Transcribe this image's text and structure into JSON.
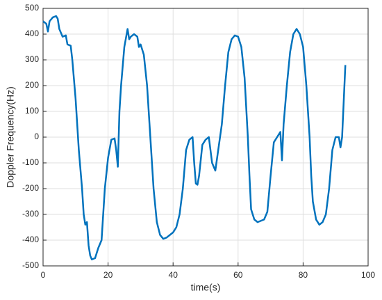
{
  "chart_data": {
    "type": "line",
    "xlabel": "time(s)",
    "ylabel": "Doppler Frequency(Hz)",
    "x": [
      0,
      1,
      1.5,
      2,
      3,
      4,
      4.5,
      5,
      6,
      7,
      7.5,
      8.5,
      9,
      10,
      10.5,
      11,
      12,
      12.5,
      13,
      13.5,
      14,
      14.5,
      15,
      16,
      17,
      18,
      19,
      20,
      21,
      22,
      22.5,
      23,
      23.5,
      24,
      25,
      26,
      26.5,
      27,
      28,
      29,
      29.5,
      30,
      31,
      32,
      33,
      34,
      35,
      36,
      37,
      38,
      39,
      40,
      41,
      42,
      43,
      44,
      45,
      46,
      46.5,
      47,
      47.5,
      48,
      49,
      50,
      51,
      52,
      53,
      54,
      55,
      56,
      57,
      58,
      59,
      60,
      61,
      62,
      63,
      63.5,
      64,
      65,
      66,
      67,
      68,
      69,
      70,
      71,
      72,
      73,
      73.5,
      74,
      75,
      76,
      77,
      78,
      79,
      80,
      81,
      82,
      82.5,
      83,
      84,
      85,
      86,
      87,
      88,
      89,
      90,
      91,
      91.5,
      92,
      93
    ],
    "series": [
      {
        "name": "Doppler",
        "color": "#0072bd",
        "values": [
          450,
          440,
          410,
          450,
          465,
          470,
          460,
          420,
          390,
          395,
          360,
          355,
          300,
          150,
          50,
          -50,
          -200,
          -300,
          -340,
          -330,
          -420,
          -460,
          -475,
          -470,
          -430,
          -400,
          -200,
          -80,
          -10,
          -5,
          -50,
          -115,
          100,
          200,
          350,
          420,
          380,
          390,
          400,
          390,
          350,
          360,
          320,
          200,
          0,
          -200,
          -330,
          -380,
          -395,
          -390,
          -380,
          -370,
          -350,
          -300,
          -200,
          -50,
          -10,
          0,
          -100,
          -180,
          -185,
          -150,
          -30,
          -10,
          0,
          -100,
          -130,
          -40,
          50,
          200,
          330,
          380,
          395,
          390,
          350,
          230,
          0,
          -150,
          -280,
          -320,
          -330,
          -325,
          -320,
          -290,
          -150,
          -20,
          0,
          20,
          -90,
          50,
          200,
          330,
          400,
          420,
          400,
          350,
          200,
          0,
          -150,
          -250,
          -320,
          -340,
          -330,
          -300,
          -200,
          -50,
          0,
          0,
          -40,
          0,
          280
        ]
      }
    ],
    "xlim": [
      0,
      100
    ],
    "xticks": [
      0,
      20,
      40,
      60,
      80,
      100
    ],
    "ylim": [
      -500,
      500
    ],
    "yticks": [
      -500,
      -400,
      -300,
      -200,
      -100,
      0,
      100,
      200,
      300,
      400,
      500
    ],
    "grid": true
  }
}
